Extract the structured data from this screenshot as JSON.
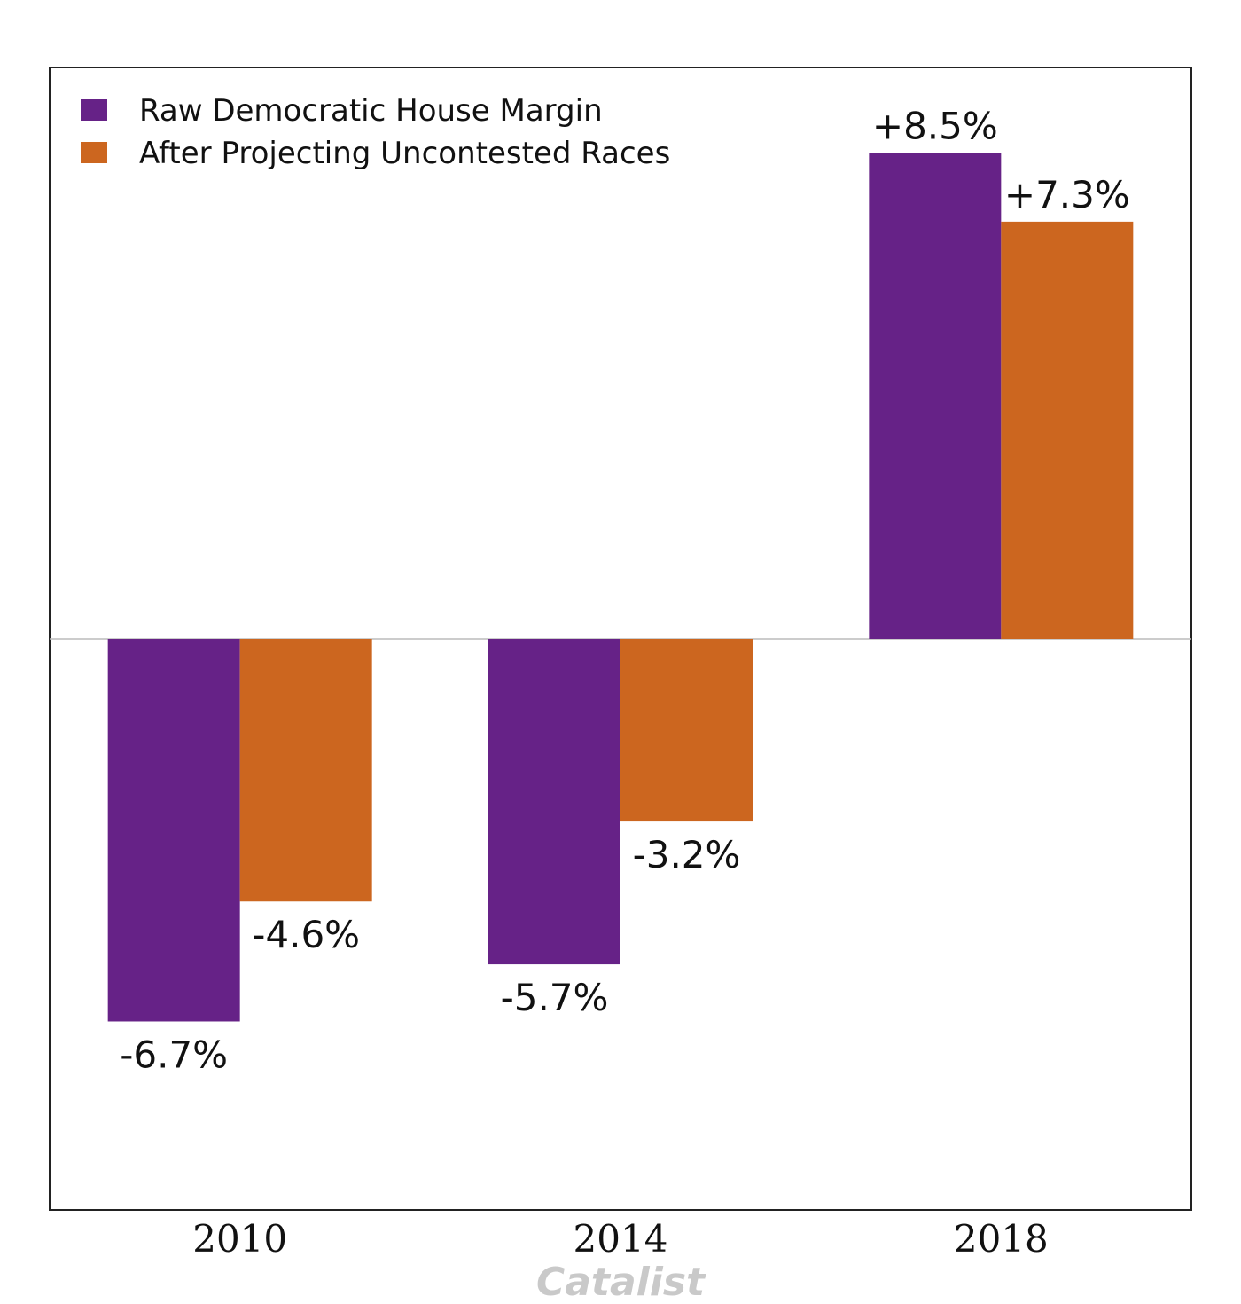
{
  "chart_data": {
    "type": "bar",
    "categories": [
      "2010",
      "2014",
      "2018"
    ],
    "series": [
      {
        "name": "Raw Democratic House Margin",
        "color": "#662287",
        "values": [
          -6.7,
          -5.7,
          8.5
        ],
        "labels": [
          "-6.7%",
          "-5.7%",
          "+8.5%"
        ]
      },
      {
        "name": "After Projecting Uncontested Races",
        "color": "#CC661F",
        "values": [
          -4.6,
          -3.2,
          7.3
        ],
        "labels": [
          "-4.6%",
          "-3.2%",
          "+7.3%"
        ]
      }
    ],
    "title": "",
    "xlabel": "",
    "ylabel": "",
    "ylim": [
      -10,
      10
    ],
    "grid": false,
    "zero_line": true,
    "legend_position": "top-left"
  },
  "watermark": "Catalist"
}
